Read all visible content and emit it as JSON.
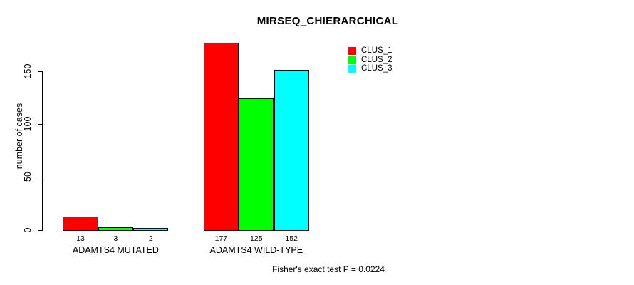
{
  "chart_data": {
    "type": "bar",
    "title": "MIRSEQ_CHIERARCHICAL",
    "ylabel": "number of cases",
    "xlabel": "",
    "categories": [
      "ADAMTS4 MUTATED",
      "ADAMTS4 WILD-TYPE"
    ],
    "series": [
      {
        "name": "CLUS_1",
        "color": "#ff0000",
        "values": [
          13,
          177
        ]
      },
      {
        "name": "CLUS_2",
        "color": "#00ff00",
        "values": [
          3,
          125
        ]
      },
      {
        "name": "CLUS_3",
        "color": "#00ffff",
        "values": [
          2,
          152
        ]
      }
    ],
    "bar_value_labels": [
      [
        "13",
        "3",
        "2"
      ],
      [
        "177",
        "125",
        "152"
      ]
    ],
    "yticks": [
      0,
      50,
      100,
      150
    ],
    "yaxis_range": [
      0,
      150
    ],
    "grid": false,
    "legend_position": "top-right",
    "bar_border_color": "#000000",
    "footnote": "Fisher's exact test P = 0.0224"
  }
}
